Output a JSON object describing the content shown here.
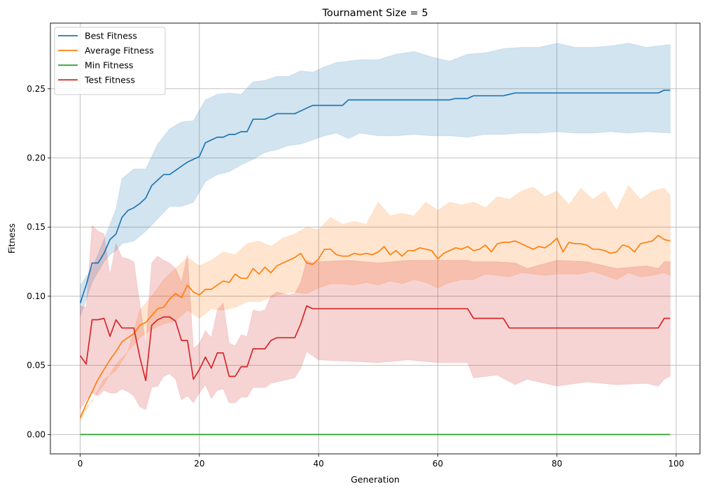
{
  "chart_data": {
    "type": "line",
    "title": "Tournament Size = 5",
    "xlabel": "Generation",
    "ylabel": "Fitness",
    "xlim": [
      -5,
      104
    ],
    "ylim": [
      -0.014,
      0.2975
    ],
    "xticks": [
      0,
      20,
      40,
      60,
      80,
      100
    ],
    "yticks": [
      0.0,
      0.05,
      0.1,
      0.15,
      0.2,
      0.25
    ],
    "xtick_labels": [
      "0",
      "20",
      "40",
      "60",
      "80",
      "100"
    ],
    "ytick_labels": [
      "0.00",
      "0.05",
      "0.10",
      "0.15",
      "0.20",
      "0.25"
    ],
    "grid": true,
    "legend_position": "upper-left",
    "legend": [
      "Best Fitness",
      "Average Fitness",
      "Min Fitness",
      "Test Fitness"
    ],
    "series": [
      {
        "name": "Best Fitness",
        "color": "#1f77b4",
        "x": [
          0,
          1,
          2,
          3,
          4,
          5,
          6,
          7,
          8,
          9,
          10,
          11,
          12,
          13,
          14,
          15,
          16,
          17,
          18,
          19,
          20,
          21,
          22,
          23,
          24,
          25,
          26,
          27,
          28,
          29,
          30,
          31,
          32,
          33,
          34,
          35,
          36,
          37,
          38,
          39,
          40,
          44,
          45,
          50,
          55,
          60,
          62,
          63,
          65,
          66,
          70,
          71,
          72,
          73,
          75,
          80,
          85,
          90,
          95,
          97,
          98,
          99
        ],
        "y": [
          0.095,
          0.108,
          0.124,
          0.124,
          0.131,
          0.141,
          0.145,
          0.157,
          0.162,
          0.164,
          0.167,
          0.171,
          0.18,
          0.184,
          0.188,
          0.188,
          0.191,
          0.194,
          0.197,
          0.199,
          0.201,
          0.211,
          0.213,
          0.215,
          0.215,
          0.217,
          0.217,
          0.219,
          0.219,
          0.228,
          0.228,
          0.228,
          0.23,
          0.232,
          0.232,
          0.232,
          0.232,
          0.234,
          0.236,
          0.238,
          0.238,
          0.238,
          0.242,
          0.242,
          0.242,
          0.242,
          0.242,
          0.243,
          0.243,
          0.245,
          0.245,
          0.245,
          0.246,
          0.247,
          0.247,
          0.247,
          0.247,
          0.247,
          0.247,
          0.247,
          0.249,
          0.249
        ],
        "band_x": [
          0,
          2,
          4,
          5,
          6,
          7,
          9,
          11,
          13,
          15,
          17,
          19,
          21,
          23,
          25,
          27,
          29,
          31,
          33,
          35,
          37,
          39,
          41,
          43,
          45,
          47,
          50,
          53,
          56,
          59,
          62,
          65,
          68,
          71,
          74,
          77,
          80,
          83,
          86,
          89,
          92,
          95,
          99
        ],
        "band_low": [
          0.085,
          0.11,
          0.125,
          0.13,
          0.133,
          0.138,
          0.14,
          0.147,
          0.156,
          0.165,
          0.165,
          0.168,
          0.183,
          0.188,
          0.19,
          0.195,
          0.199,
          0.204,
          0.206,
          0.209,
          0.21,
          0.213,
          0.216,
          0.218,
          0.214,
          0.218,
          0.216,
          0.216,
          0.217,
          0.216,
          0.216,
          0.215,
          0.217,
          0.217,
          0.218,
          0.218,
          0.219,
          0.218,
          0.218,
          0.219,
          0.218,
          0.219,
          0.218
        ],
        "band_high": [
          0.108,
          0.12,
          0.141,
          0.152,
          0.163,
          0.185,
          0.192,
          0.192,
          0.21,
          0.221,
          0.226,
          0.227,
          0.242,
          0.246,
          0.247,
          0.246,
          0.255,
          0.256,
          0.259,
          0.259,
          0.263,
          0.262,
          0.266,
          0.269,
          0.27,
          0.271,
          0.271,
          0.275,
          0.277,
          0.273,
          0.27,
          0.275,
          0.276,
          0.279,
          0.28,
          0.28,
          0.283,
          0.28,
          0.28,
          0.281,
          0.283,
          0.28,
          0.282
        ]
      },
      {
        "name": "Average Fitness",
        "color": "#ff7f0e",
        "x": [
          0,
          1,
          2,
          3,
          4,
          5,
          6,
          7,
          8,
          9,
          10,
          11,
          12,
          13,
          14,
          15,
          16,
          17,
          18,
          19,
          20,
          21,
          22,
          23,
          24,
          25,
          26,
          27,
          28,
          29,
          30,
          31,
          32,
          33,
          34,
          35,
          36,
          37,
          38,
          39,
          40,
          41,
          42,
          43,
          44,
          45,
          46,
          47,
          48,
          49,
          50,
          51,
          52,
          53,
          54,
          55,
          56,
          57,
          58,
          59,
          60,
          61,
          62,
          63,
          64,
          65,
          66,
          67,
          68,
          69,
          70,
          71,
          72,
          73,
          74,
          75,
          76,
          77,
          78,
          79,
          80,
          81,
          82,
          83,
          84,
          85,
          86,
          87,
          88,
          89,
          90,
          91,
          92,
          93,
          94,
          95,
          96,
          97,
          98,
          99
        ],
        "y": [
          0.012,
          0.022,
          0.031,
          0.04,
          0.047,
          0.054,
          0.06,
          0.067,
          0.07,
          0.073,
          0.079,
          0.081,
          0.086,
          0.091,
          0.092,
          0.098,
          0.102,
          0.099,
          0.108,
          0.103,
          0.101,
          0.105,
          0.105,
          0.108,
          0.111,
          0.11,
          0.116,
          0.113,
          0.113,
          0.12,
          0.116,
          0.121,
          0.117,
          0.122,
          0.124,
          0.126,
          0.128,
          0.131,
          0.124,
          0.123,
          0.127,
          0.134,
          0.134,
          0.13,
          0.129,
          0.129,
          0.131,
          0.13,
          0.131,
          0.13,
          0.132,
          0.136,
          0.13,
          0.133,
          0.129,
          0.133,
          0.133,
          0.135,
          0.134,
          0.133,
          0.127,
          0.131,
          0.133,
          0.135,
          0.134,
          0.136,
          0.133,
          0.134,
          0.137,
          0.132,
          0.138,
          0.139,
          0.139,
          0.14,
          0.138,
          0.136,
          0.134,
          0.136,
          0.135,
          0.138,
          0.142,
          0.132,
          0.139,
          0.138,
          0.138,
          0.137,
          0.134,
          0.134,
          0.133,
          0.131,
          0.132,
          0.137,
          0.136,
          0.132,
          0.138,
          0.139,
          0.14,
          0.144,
          0.141,
          0.14
        ],
        "band_x": [
          0,
          2,
          4,
          6,
          8,
          10,
          12,
          14,
          16,
          18,
          20,
          22,
          24,
          26,
          28,
          30,
          32,
          34,
          36,
          38,
          40,
          42,
          44,
          46,
          48,
          50,
          52,
          54,
          56,
          58,
          60,
          62,
          64,
          66,
          68,
          70,
          72,
          74,
          76,
          78,
          80,
          82,
          84,
          86,
          88,
          90,
          92,
          94,
          96,
          98,
          99
        ],
        "band_low": [
          0.01,
          0.025,
          0.036,
          0.051,
          0.06,
          0.07,
          0.076,
          0.08,
          0.082,
          0.09,
          0.084,
          0.091,
          0.09,
          0.092,
          0.096,
          0.096,
          0.099,
          0.102,
          0.103,
          0.102,
          0.106,
          0.109,
          0.109,
          0.108,
          0.11,
          0.108,
          0.111,
          0.109,
          0.112,
          0.11,
          0.106,
          0.11,
          0.112,
          0.112,
          0.116,
          0.115,
          0.114,
          0.117,
          0.116,
          0.115,
          0.116,
          0.116,
          0.116,
          0.118,
          0.115,
          0.112,
          0.117,
          0.114,
          0.115,
          0.117,
          0.115
        ],
        "band_high": [
          0.015,
          0.024,
          0.04,
          0.046,
          0.06,
          0.09,
          0.1,
          0.112,
          0.12,
          0.128,
          0.122,
          0.126,
          0.132,
          0.13,
          0.138,
          0.14,
          0.136,
          0.142,
          0.145,
          0.15,
          0.148,
          0.157,
          0.152,
          0.154,
          0.152,
          0.168,
          0.158,
          0.16,
          0.158,
          0.168,
          0.162,
          0.168,
          0.166,
          0.168,
          0.164,
          0.172,
          0.17,
          0.176,
          0.179,
          0.172,
          0.176,
          0.166,
          0.178,
          0.17,
          0.176,
          0.162,
          0.18,
          0.17,
          0.176,
          0.178,
          0.173
        ]
      },
      {
        "name": "Min Fitness",
        "color": "#2ca02c",
        "x": [
          0,
          99
        ],
        "y": [
          0.0,
          0.0
        ]
      },
      {
        "name": "Test Fitness",
        "color": "#d62728",
        "x": [
          0,
          1,
          2,
          3,
          4,
          5,
          6,
          7,
          8,
          9,
          10,
          11,
          12,
          13,
          14,
          15,
          16,
          17,
          18,
          19,
          20,
          21,
          22,
          23,
          24,
          25,
          26,
          27,
          28,
          29,
          30,
          31,
          32,
          33,
          34,
          35,
          36,
          37,
          38,
          39,
          40,
          44,
          45,
          50,
          55,
          60,
          65,
          66,
          70,
          71,
          72,
          73,
          75,
          80,
          85,
          90,
          95,
          97,
          98,
          99
        ],
        "y": [
          0.057,
          0.051,
          0.083,
          0.083,
          0.084,
          0.071,
          0.083,
          0.077,
          0.077,
          0.077,
          0.056,
          0.039,
          0.079,
          0.083,
          0.085,
          0.085,
          0.082,
          0.068,
          0.068,
          0.04,
          0.047,
          0.056,
          0.048,
          0.059,
          0.059,
          0.042,
          0.042,
          0.049,
          0.049,
          0.062,
          0.062,
          0.062,
          0.068,
          0.07,
          0.07,
          0.07,
          0.07,
          0.08,
          0.093,
          0.091,
          0.091,
          0.091,
          0.091,
          0.091,
          0.091,
          0.091,
          0.091,
          0.084,
          0.084,
          0.084,
          0.077,
          0.077,
          0.077,
          0.077,
          0.077,
          0.077,
          0.077,
          0.077,
          0.084,
          0.084
        ],
        "band_x": [
          0,
          1,
          2,
          3,
          4,
          5,
          6,
          7,
          8,
          9,
          10,
          11,
          12,
          13,
          14,
          15,
          16,
          17,
          18,
          19,
          20,
          21,
          22,
          23,
          24,
          25,
          26,
          27,
          28,
          29,
          30,
          31,
          32,
          33,
          34,
          35,
          36,
          37,
          38,
          39,
          40,
          45,
          50,
          55,
          60,
          65,
          66,
          70,
          73,
          75,
          80,
          85,
          90,
          95,
          97,
          98,
          99
        ],
        "band_low": [
          0.018,
          0.025,
          0.03,
          0.028,
          0.032,
          0.03,
          0.03,
          0.033,
          0.031,
          0.028,
          0.02,
          0.018,
          0.034,
          0.035,
          0.042,
          0.044,
          0.04,
          0.025,
          0.028,
          0.023,
          0.03,
          0.036,
          0.026,
          0.032,
          0.033,
          0.023,
          0.023,
          0.027,
          0.027,
          0.034,
          0.034,
          0.034,
          0.037,
          0.038,
          0.039,
          0.04,
          0.041,
          0.048,
          0.06,
          0.057,
          0.054,
          0.053,
          0.052,
          0.054,
          0.052,
          0.052,
          0.041,
          0.043,
          0.036,
          0.04,
          0.035,
          0.038,
          0.036,
          0.037,
          0.035,
          0.04,
          0.042
        ],
        "band_high": [
          0.093,
          0.092,
          0.151,
          0.147,
          0.145,
          0.115,
          0.138,
          0.128,
          0.127,
          0.125,
          0.095,
          0.065,
          0.124,
          0.129,
          0.126,
          0.124,
          0.12,
          0.11,
          0.13,
          0.062,
          0.066,
          0.075,
          0.07,
          0.09,
          0.095,
          0.066,
          0.064,
          0.072,
          0.071,
          0.09,
          0.089,
          0.09,
          0.1,
          0.103,
          0.102,
          0.101,
          0.102,
          0.11,
          0.126,
          0.124,
          0.125,
          0.126,
          0.124,
          0.126,
          0.126,
          0.126,
          0.125,
          0.125,
          0.124,
          0.12,
          0.126,
          0.125,
          0.12,
          0.122,
          0.12,
          0.125,
          0.125
        ]
      }
    ]
  }
}
